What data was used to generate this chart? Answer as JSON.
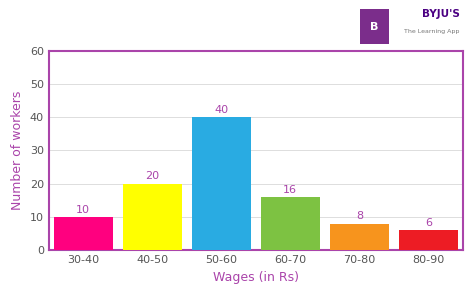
{
  "categories": [
    "30-40",
    "40-50",
    "50-60",
    "60-70",
    "70-80",
    "80-90"
  ],
  "values": [
    10,
    20,
    40,
    16,
    8,
    6
  ],
  "bar_colors": [
    "#FF007F",
    "#FFFF00",
    "#29ABE2",
    "#7DC242",
    "#F7941D",
    "#ED1C24"
  ],
  "xlabel": "Wages (in Rs)",
  "ylabel": "Number of workers",
  "ylim": [
    0,
    60
  ],
  "yticks": [
    0,
    10,
    20,
    30,
    40,
    50,
    60
  ],
  "spine_color": "#AA44AA",
  "background_color": "#FFFFFF",
  "label_fontsize": 8,
  "axis_label_fontsize": 9,
  "annotation_fontsize": 8,
  "annotation_color": "#AA44AA",
  "bar_width": 0.85,
  "grid_color": "#DDDDDD",
  "tick_color": "#555555",
  "byju_text": "BYJU'S",
  "byju_subtext": "The Learning App",
  "byju_color": "#4B0082",
  "byju_sub_color": "#777777"
}
